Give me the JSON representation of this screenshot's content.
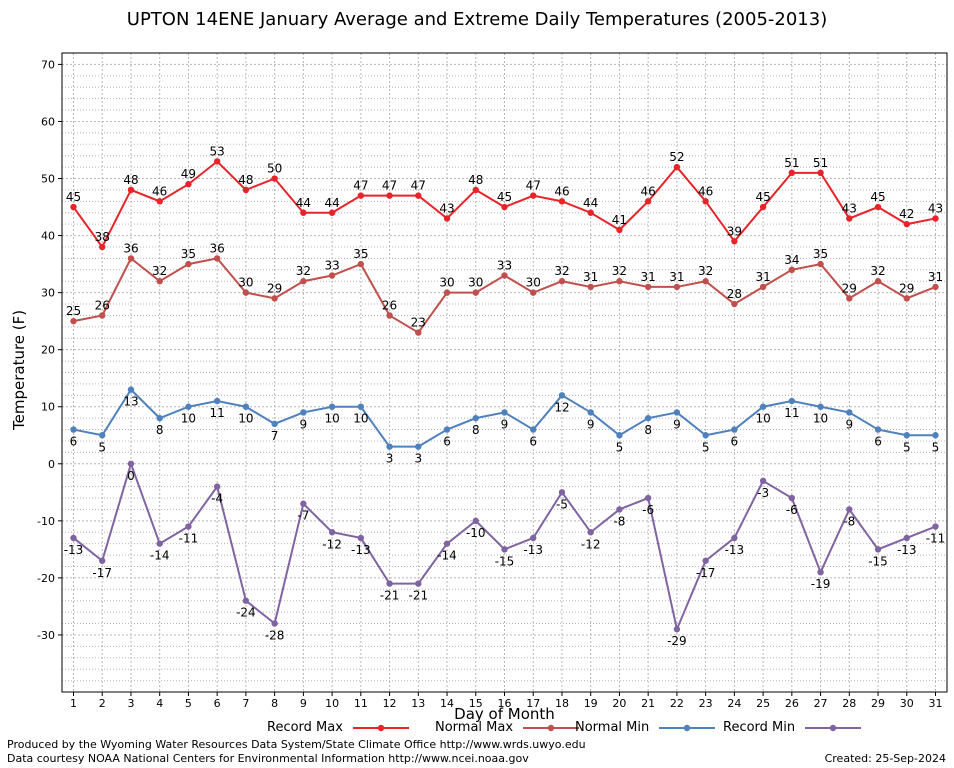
{
  "chart_data": {
    "type": "line",
    "title": "UPTON 14ENE January Average and Extreme Daily Temperatures (2005-2013)",
    "xlabel": "Day of Month",
    "ylabel": "Temperature (F)",
    "x": [
      1,
      2,
      3,
      4,
      5,
      6,
      7,
      8,
      9,
      10,
      11,
      12,
      13,
      14,
      15,
      16,
      17,
      18,
      19,
      20,
      21,
      22,
      23,
      24,
      25,
      26,
      27,
      28,
      29,
      30,
      31
    ],
    "xlim": [
      0.6,
      31.4
    ],
    "ylim": [
      -40,
      72
    ],
    "yticks": [
      -30,
      -20,
      -10,
      0,
      10,
      20,
      30,
      40,
      50,
      60,
      70
    ],
    "grid": true,
    "legend_position": "bottom",
    "series": [
      {
        "name": "Record Max",
        "color": "#e8232a",
        "values": [
          45,
          38,
          48,
          46,
          49,
          53,
          48,
          50,
          44,
          44,
          47,
          47,
          47,
          43,
          48,
          45,
          47,
          46,
          44,
          41,
          46,
          52,
          46,
          39,
          45,
          51,
          51,
          43,
          45,
          42,
          43
        ]
      },
      {
        "name": "Normal Max",
        "color": "#c0504d",
        "values": [
          25,
          26,
          36,
          32,
          35,
          36,
          30,
          29,
          32,
          33,
          35,
          26,
          23,
          30,
          30,
          33,
          30,
          32,
          31,
          32,
          31,
          31,
          32,
          28,
          31,
          34,
          35,
          29,
          32,
          29,
          31
        ]
      },
      {
        "name": "Normal Min",
        "color": "#4f81bd",
        "values": [
          6,
          5,
          13,
          8,
          10,
          11,
          10,
          7,
          9,
          10,
          10,
          3,
          3,
          6,
          8,
          9,
          6,
          12,
          9,
          5,
          8,
          9,
          5,
          6,
          10,
          11,
          10,
          9,
          6,
          5,
          5
        ]
      },
      {
        "name": "Record Min",
        "color": "#8064a2",
        "values": [
          -13,
          -17,
          0,
          -14,
          -11,
          -4,
          -24,
          -28,
          -7,
          -12,
          -13,
          -21,
          -21,
          -14,
          -10,
          -15,
          -13,
          -5,
          -12,
          -8,
          -6,
          -29,
          -17,
          -13,
          -3,
          -6,
          -19,
          -8,
          -15,
          -13,
          -11
        ]
      }
    ]
  },
  "footer": {
    "line1": "Produced by the Wyoming Water Resources Data System/State Climate Office http://www.wrds.uwyo.edu",
    "line2": "Data courtesy NOAA National Centers for Environmental Information http://www.ncei.noaa.gov",
    "created": "Created:  25-Sep-2024"
  }
}
